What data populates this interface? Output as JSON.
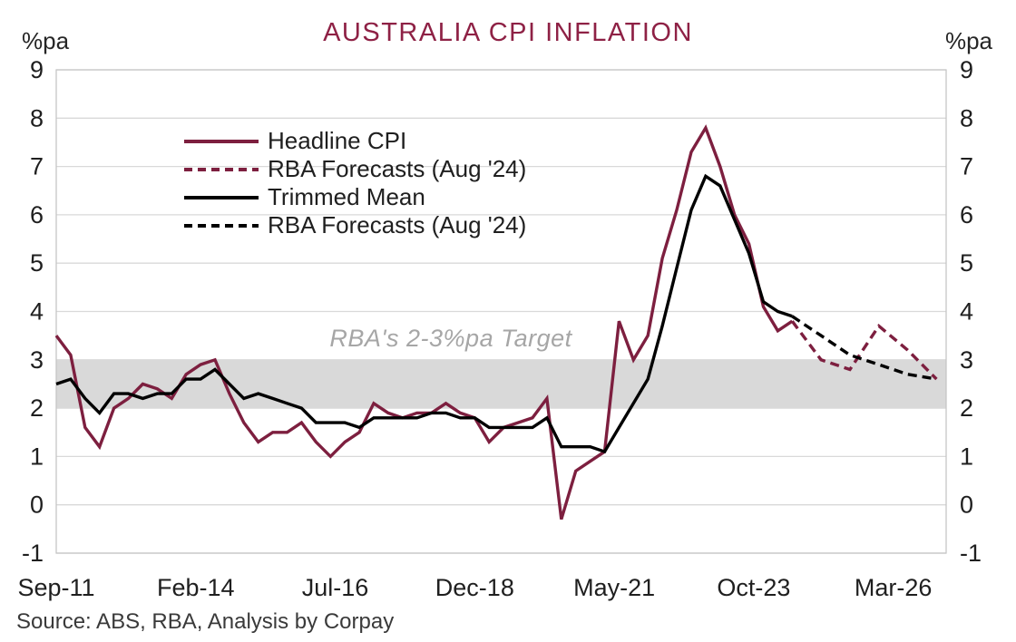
{
  "page": {
    "title": "AUSTRALIA CPI INFLATION",
    "unit_label": "%pa",
    "source_note": "Source: ABS, RBA, Analysis by Corpay"
  },
  "colors": {
    "headline_line": "#7d1f3f",
    "trimmed_line": "#000000",
    "title_text": "#8e2145",
    "target_band_fill": "#d9d9d9",
    "band_label_text": "#a6a6a6",
    "gridline": "#d9d9d9",
    "plot_border": "#c6c6c6",
    "axis_text": "#1f1f1f"
  },
  "chart_data": {
    "type": "line",
    "title": "AUSTRALIA CPI INFLATION",
    "ylabel": "%pa",
    "ylim": [
      -1,
      9
    ],
    "yticks": [
      -1,
      0,
      1,
      2,
      3,
      4,
      5,
      6,
      7,
      8,
      9
    ],
    "grid": "horizontal",
    "legend_position": "inside-top-left",
    "x_axis": {
      "unit": "months since Sep-2011, quarterly data",
      "range_months": [
        0,
        185
      ],
      "tick_labels": [
        {
          "m": 0,
          "label": "Sep-11"
        },
        {
          "m": 29,
          "label": "Feb-14"
        },
        {
          "m": 58,
          "label": "Jul-16"
        },
        {
          "m": 87,
          "label": "Dec-18"
        },
        {
          "m": 116,
          "label": "May-21"
        },
        {
          "m": 145,
          "label": "Oct-23"
        },
        {
          "m": 174,
          "label": "Mar-26"
        }
      ]
    },
    "target_band": {
      "from": 2,
      "to": 3,
      "label": "RBA's 2-3%pa Target"
    },
    "series": [
      {
        "name": "Headline CPI",
        "style": "solid",
        "color": "#7d1f3f",
        "points": [
          [
            0,
            3.5
          ],
          [
            3,
            3.1
          ],
          [
            6,
            1.6
          ],
          [
            9,
            1.2
          ],
          [
            12,
            2.0
          ],
          [
            15,
            2.2
          ],
          [
            18,
            2.5
          ],
          [
            21,
            2.4
          ],
          [
            24,
            2.2
          ],
          [
            27,
            2.7
          ],
          [
            30,
            2.9
          ],
          [
            33,
            3.0
          ],
          [
            36,
            2.3
          ],
          [
            39,
            1.7
          ],
          [
            42,
            1.3
          ],
          [
            45,
            1.5
          ],
          [
            48,
            1.5
          ],
          [
            51,
            1.7
          ],
          [
            54,
            1.3
          ],
          [
            57,
            1.0
          ],
          [
            60,
            1.3
          ],
          [
            63,
            1.5
          ],
          [
            66,
            2.1
          ],
          [
            69,
            1.9
          ],
          [
            72,
            1.8
          ],
          [
            75,
            1.9
          ],
          [
            78,
            1.9
          ],
          [
            81,
            2.1
          ],
          [
            84,
            1.9
          ],
          [
            87,
            1.8
          ],
          [
            90,
            1.3
          ],
          [
            93,
            1.6
          ],
          [
            96,
            1.7
          ],
          [
            99,
            1.8
          ],
          [
            102,
            2.2
          ],
          [
            105,
            -0.3
          ],
          [
            108,
            0.7
          ],
          [
            111,
            0.9
          ],
          [
            114,
            1.1
          ],
          [
            117,
            3.8
          ],
          [
            120,
            3.0
          ],
          [
            123,
            3.5
          ],
          [
            126,
            5.1
          ],
          [
            129,
            6.1
          ],
          [
            132,
            7.3
          ],
          [
            135,
            7.8
          ],
          [
            138,
            7.0
          ],
          [
            141,
            6.0
          ],
          [
            144,
            5.4
          ],
          [
            147,
            4.1
          ],
          [
            150,
            3.6
          ],
          [
            153,
            3.8
          ]
        ]
      },
      {
        "name": "RBA Forecasts (Aug '24)",
        "style": "dashed",
        "color": "#7d1f3f",
        "points": [
          [
            153,
            3.8
          ],
          [
            156,
            3.4
          ],
          [
            159,
            3.0
          ],
          [
            162,
            2.9
          ],
          [
            165,
            2.8
          ],
          [
            171,
            3.7
          ],
          [
            177,
            3.2
          ],
          [
            183,
            2.6
          ]
        ]
      },
      {
        "name": "Trimmed Mean",
        "style": "solid",
        "color": "#000000",
        "points": [
          [
            0,
            2.5
          ],
          [
            3,
            2.6
          ],
          [
            6,
            2.2
          ],
          [
            9,
            1.9
          ],
          [
            12,
            2.3
          ],
          [
            15,
            2.3
          ],
          [
            18,
            2.2
          ],
          [
            21,
            2.3
          ],
          [
            24,
            2.3
          ],
          [
            27,
            2.6
          ],
          [
            30,
            2.6
          ],
          [
            33,
            2.8
          ],
          [
            36,
            2.5
          ],
          [
            39,
            2.2
          ],
          [
            42,
            2.3
          ],
          [
            45,
            2.2
          ],
          [
            48,
            2.1
          ],
          [
            51,
            2.0
          ],
          [
            54,
            1.7
          ],
          [
            57,
            1.7
          ],
          [
            60,
            1.7
          ],
          [
            63,
            1.6
          ],
          [
            66,
            1.8
          ],
          [
            69,
            1.8
          ],
          [
            72,
            1.8
          ],
          [
            75,
            1.8
          ],
          [
            78,
            1.9
          ],
          [
            81,
            1.9
          ],
          [
            84,
            1.8
          ],
          [
            87,
            1.8
          ],
          [
            90,
            1.6
          ],
          [
            93,
            1.6
          ],
          [
            96,
            1.6
          ],
          [
            99,
            1.6
          ],
          [
            102,
            1.8
          ],
          [
            105,
            1.2
          ],
          [
            108,
            1.2
          ],
          [
            111,
            1.2
          ],
          [
            114,
            1.1
          ],
          [
            117,
            1.6
          ],
          [
            120,
            2.1
          ],
          [
            123,
            2.6
          ],
          [
            126,
            3.7
          ],
          [
            129,
            4.9
          ],
          [
            132,
            6.1
          ],
          [
            135,
            6.8
          ],
          [
            138,
            6.6
          ],
          [
            141,
            5.9
          ],
          [
            144,
            5.2
          ],
          [
            147,
            4.2
          ],
          [
            150,
            4.0
          ],
          [
            153,
            3.9
          ]
        ]
      },
      {
        "name": "RBA Forecasts (Aug '24)",
        "style": "dashed",
        "color": "#000000",
        "points": [
          [
            153,
            3.9
          ],
          [
            156,
            3.7
          ],
          [
            159,
            3.5
          ],
          [
            162,
            3.3
          ],
          [
            165,
            3.1
          ],
          [
            171,
            2.9
          ],
          [
            177,
            2.7
          ],
          [
            183,
            2.6
          ]
        ]
      }
    ]
  }
}
